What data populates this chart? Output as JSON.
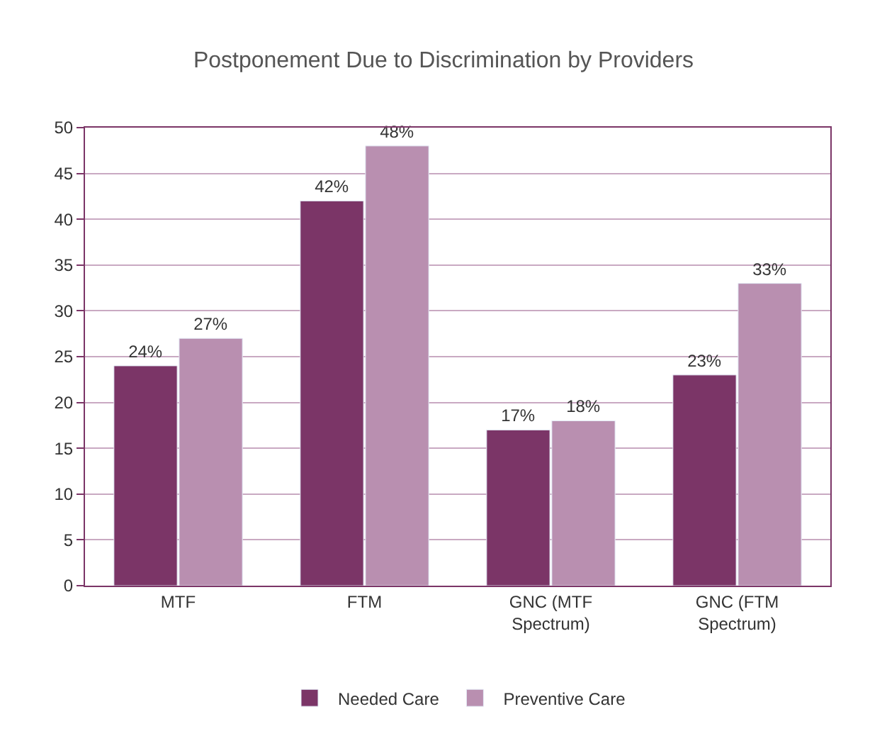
{
  "chart_data": {
    "type": "bar",
    "title": "Postponement Due to Discrimination by Providers",
    "categories": [
      "MTF",
      "FTM",
      "GNC (MTF Spectrum)",
      "GNC (FTM Spectrum)"
    ],
    "series": [
      {
        "name": "Needed Care",
        "color": "#7b3567",
        "values": [
          24,
          42,
          17,
          23
        ],
        "value_labels": [
          "24%",
          "42%",
          "17%",
          "23%"
        ]
      },
      {
        "name": "Preventive Care",
        "color": "#b98fb0",
        "values": [
          27,
          48,
          18,
          33
        ],
        "value_labels": [
          "27%",
          "48%",
          "18%",
          "33%"
        ]
      }
    ],
    "ylim": [
      0,
      50
    ],
    "yticks": [
      0,
      5,
      10,
      15,
      20,
      25,
      30,
      35,
      40,
      45,
      50
    ],
    "grid": "y",
    "legend": "bottom"
  }
}
